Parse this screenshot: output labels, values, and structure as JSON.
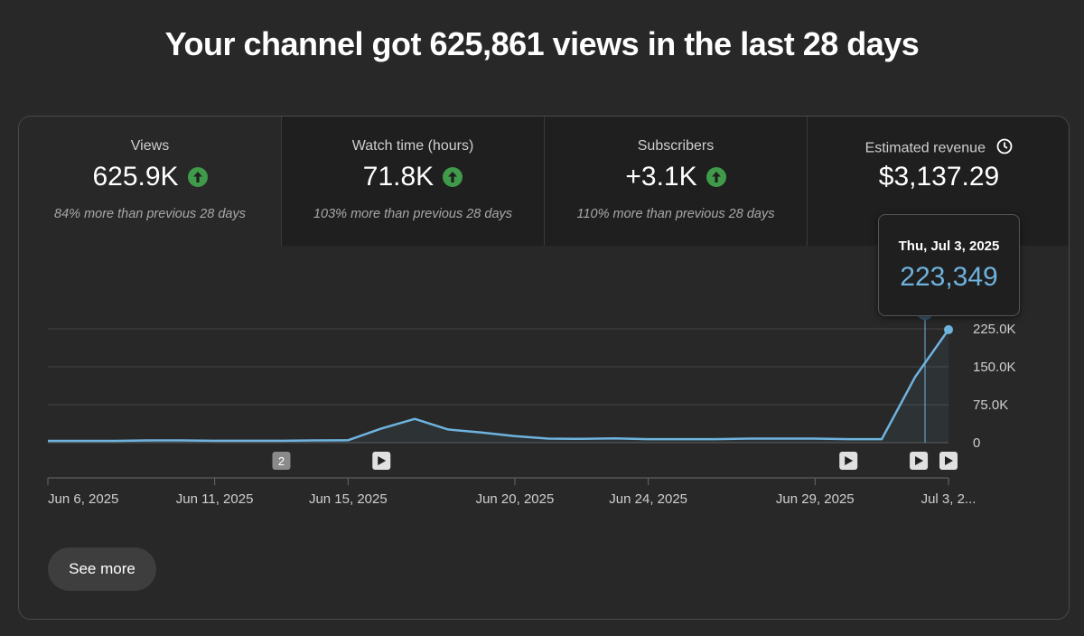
{
  "headline": "Your channel got 625,861 views in the last 28 days",
  "metrics": [
    {
      "label": "Views",
      "value": "625.9K",
      "trend": "up",
      "compare": "84% more than previous 28 days"
    },
    {
      "label": "Watch time (hours)",
      "value": "71.8K",
      "trend": "up",
      "compare": "103% more than previous 28 days"
    },
    {
      "label": "Subscribers",
      "value": "+3.1K",
      "trend": "up",
      "compare": "110% more than previous 28 days"
    },
    {
      "label": "Estimated revenue",
      "value": "$3,137.29",
      "icon": "clock-icon"
    }
  ],
  "tooltip": {
    "date": "Thu, Jul 3, 2025",
    "value": "223,349"
  },
  "see_more_label": "See more",
  "colors": {
    "line": "#6eb3de",
    "up_badge": "#3f9a4a",
    "background": "#282828"
  },
  "chart_data": {
    "type": "line",
    "x": [
      "Jun 6, 2025",
      "Jun 7, 2025",
      "Jun 8, 2025",
      "Jun 9, 2025",
      "Jun 10, 2025",
      "Jun 11, 2025",
      "Jun 12, 2025",
      "Jun 13, 2025",
      "Jun 14, 2025",
      "Jun 15, 2025",
      "Jun 16, 2025",
      "Jun 17, 2025",
      "Jun 18, 2025",
      "Jun 19, 2025",
      "Jun 20, 2025",
      "Jun 21, 2025",
      "Jun 22, 2025",
      "Jun 23, 2025",
      "Jun 24, 2025",
      "Jun 25, 2025",
      "Jun 26, 2025",
      "Jun 27, 2025",
      "Jun 28, 2025",
      "Jun 29, 2025",
      "Jun 30, 2025",
      "Jul 1, 2025",
      "Jul 2, 2025",
      "Jul 3, 2025"
    ],
    "series": [
      {
        "values": [
          3500,
          3500,
          3500,
          4500,
          4500,
          3800,
          3800,
          3800,
          4500,
          4800,
          28000,
          47000,
          26000,
          20000,
          13000,
          8000,
          7500,
          8500,
          7000,
          7000,
          7000,
          8000,
          8000,
          8000,
          7000,
          7000,
          130000,
          223349
        ]
      }
    ],
    "x_tick_labels": [
      "Jun 6, 2025",
      "Jun 11, 2025",
      "Jun 15, 2025",
      "Jun 20, 2025",
      "Jun 24, 2025",
      "Jun 29, 2025",
      "Jul 3, 2..."
    ],
    "x_tick_dates": [
      "Jun 6, 2025",
      "Jun 11, 2025",
      "Jun 15, 2025",
      "Jun 20, 2025",
      "Jun 24, 2025",
      "Jun 29, 2025",
      "Jul 3, 2025"
    ],
    "y_ticks": [
      0,
      75000,
      150000,
      225000
    ],
    "y_tick_labels": [
      "0",
      "75.0K",
      "150.0K",
      "225.0K"
    ],
    "ylim": [
      0,
      225000
    ],
    "grid": true,
    "highlight": "Jul 3, 2025",
    "markers": [
      {
        "date": "Jun 13, 2025",
        "kind": "count",
        "label": "2"
      },
      {
        "date": "Jun 16, 2025",
        "kind": "video"
      },
      {
        "date": "Jun 30, 2025",
        "kind": "video"
      },
      {
        "date": "Jul 2, 2025",
        "kind": "video"
      },
      {
        "date": "Jul 3, 2025",
        "kind": "video"
      }
    ]
  }
}
